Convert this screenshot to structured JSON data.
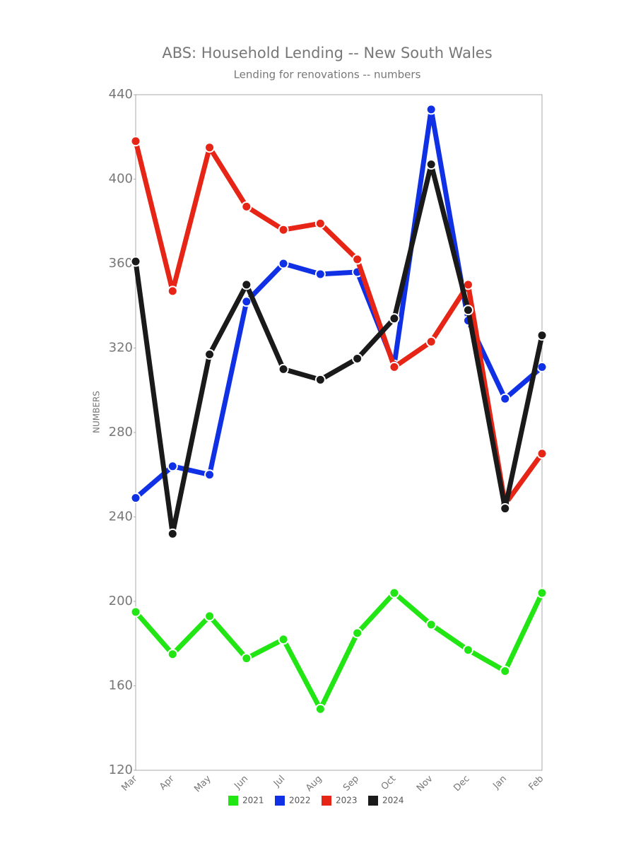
{
  "chart_data": {
    "type": "line",
    "title": "ABS: Household Lending -- New South Wales",
    "subtitle": "Lending for renovations -- numbers",
    "ylabel": "NUMBERS",
    "categories": [
      "Mar",
      "Apr",
      "May",
      "Jun",
      "Jul",
      "Aug",
      "Sep",
      "Oct",
      "Nov",
      "Dec",
      "Jan",
      "Feb"
    ],
    "series": [
      {
        "name": "2021",
        "color": "#22e614",
        "values": [
          195,
          175,
          193,
          173,
          182,
          149,
          185,
          204,
          189,
          177,
          167,
          204
        ]
      },
      {
        "name": "2022",
        "color": "#1030e6",
        "values": [
          249,
          264,
          260,
          342,
          360,
          355,
          356,
          312,
          433,
          333,
          296,
          311
        ]
      },
      {
        "name": "2023",
        "color": "#e62516",
        "values": [
          418,
          347,
          415,
          387,
          376,
          379,
          362,
          311,
          323,
          350,
          246,
          270
        ]
      },
      {
        "name": "2024",
        "color": "#1a1a1a",
        "values": [
          361,
          232,
          317,
          350,
          310,
          305,
          315,
          334,
          407,
          338,
          244,
          326
        ]
      }
    ],
    "ylim": [
      120,
      440
    ],
    "yticks": [
      120,
      160,
      200,
      240,
      280,
      320,
      360,
      400,
      440
    ],
    "grid": false
  }
}
